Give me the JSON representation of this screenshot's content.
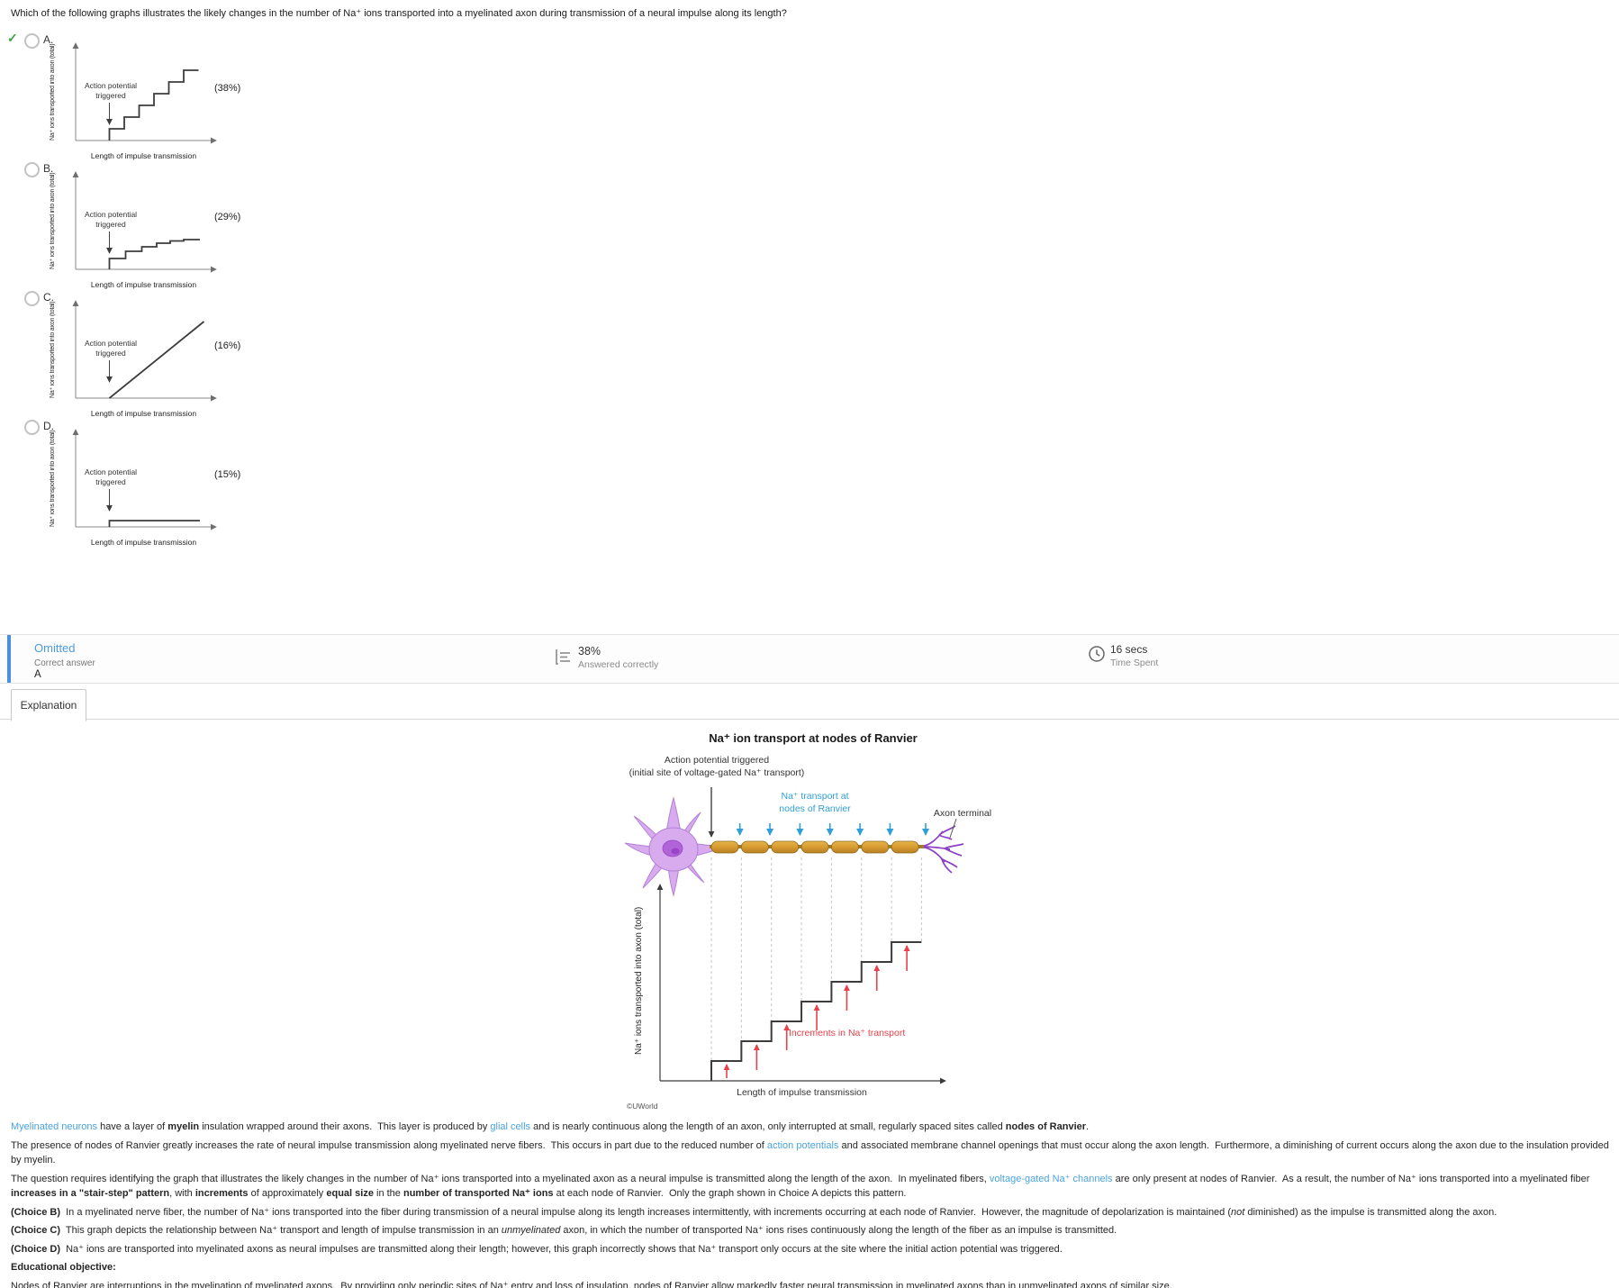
{
  "question": "Which of the following graphs illustrates the likely changes in the number of Na⁺ ions transported into a myelinated axon during transmission of a neural impulse along its length?",
  "icons": {
    "correct_check": "✓",
    "answered_stat": "bar-list-icon",
    "time": "clock-icon"
  },
  "choices": [
    {
      "letter": "A.",
      "percent": "(38%)",
      "annotation": "Action potential\ntriggered",
      "ylabel": "Na⁺ ions transported into axon (total)",
      "xlabel": "Length of impulse transmission",
      "correct": true
    },
    {
      "letter": "B.",
      "percent": "(29%)",
      "annotation": "Action potential\ntriggered",
      "ylabel": "Na⁺ ions transported into axon (total)",
      "xlabel": "Length of impulse transmission",
      "correct": false
    },
    {
      "letter": "C.",
      "percent": "(16%)",
      "annotation": "Action potential\ntriggered",
      "ylabel": "Na⁺ ions transported into axon (total)",
      "xlabel": "Length of impulse transmission",
      "correct": false
    },
    {
      "letter": "D.",
      "percent": "(15%)",
      "annotation": "Action potential\ntriggered",
      "ylabel": "Na⁺ ions transported into axon (total)",
      "xlabel": "Length of impulse transmission",
      "correct": false
    }
  ],
  "result_bar": {
    "status": "Omitted",
    "correct_answer_label": "Correct answer",
    "correct_answer_value": "A",
    "answered_pct": "38%",
    "answered_label": "Answered correctly",
    "time_value": "16 secs",
    "time_label": "Time Spent"
  },
  "tab_label": "Explanation",
  "figure": {
    "title": "Na⁺ ion transport at nodes of Ranvier",
    "trigger_label": "Action potential triggered\n(initial site of voltage-gated Na⁺ transport)",
    "transport_label": "Na⁺ transport at\nnodes of Ranvier",
    "terminal_label": "Axon terminal",
    "increments_label": "Increments in Na⁺ transport",
    "xlabel": "Length of impulse transmission",
    "ylabel": "Na⁺ ions transported into axon (total)",
    "copyright": "©UWorld"
  },
  "chart_data": [
    {
      "id": "choice-A-graph",
      "choice": "A",
      "type": "line",
      "shape": "stair-step with equal increments",
      "xlabel": "Length of impulse transmission",
      "ylabel": "Na⁺ ions transported into axon (total)",
      "annotation": "Action potential triggered",
      "x_range": [
        0,
        1
      ],
      "y_range": [
        0,
        1
      ],
      "points_norm": [
        [
          0.25,
          0
        ],
        [
          0.25,
          0.13
        ],
        [
          0.36,
          0.13
        ],
        [
          0.36,
          0.26
        ],
        [
          0.47,
          0.26
        ],
        [
          0.47,
          0.39
        ],
        [
          0.58,
          0.39
        ],
        [
          0.58,
          0.52
        ],
        [
          0.69,
          0.52
        ],
        [
          0.69,
          0.65
        ],
        [
          0.8,
          0.65
        ],
        [
          0.8,
          0.78
        ],
        [
          0.91,
          0.78
        ]
      ]
    },
    {
      "id": "choice-B-graph",
      "choice": "B",
      "type": "line",
      "shape": "stair-step with diminishing increments",
      "xlabel": "Length of impulse transmission",
      "ylabel": "Na⁺ ions transported into axon (total)",
      "annotation": "Action potential triggered",
      "x_range": [
        0,
        1
      ],
      "y_range": [
        0,
        1
      ],
      "points_norm": [
        [
          0.25,
          0
        ],
        [
          0.25,
          0.12
        ],
        [
          0.37,
          0.12
        ],
        [
          0.37,
          0.2
        ],
        [
          0.49,
          0.2
        ],
        [
          0.49,
          0.25
        ],
        [
          0.6,
          0.25
        ],
        [
          0.6,
          0.29
        ],
        [
          0.7,
          0.29
        ],
        [
          0.7,
          0.315
        ],
        [
          0.8,
          0.315
        ],
        [
          0.8,
          0.33
        ],
        [
          0.92,
          0.33
        ]
      ]
    },
    {
      "id": "choice-C-graph",
      "choice": "C",
      "type": "line",
      "shape": "continuous linear increase",
      "xlabel": "Length of impulse transmission",
      "ylabel": "Na⁺ ions transported into axon (total)",
      "annotation": "Action potential triggered",
      "x_range": [
        0,
        1
      ],
      "y_range": [
        0,
        1
      ],
      "points_norm": [
        [
          0.25,
          0
        ],
        [
          0.95,
          0.85
        ]
      ]
    },
    {
      "id": "choice-D-graph",
      "choice": "D",
      "type": "line",
      "shape": "single initial increment then flat",
      "xlabel": "Length of impulse transmission",
      "ylabel": "Na⁺ ions transported into axon (total)",
      "annotation": "Action potential triggered",
      "x_range": [
        0,
        1
      ],
      "y_range": [
        0,
        1
      ],
      "points_norm": [
        [
          0.25,
          0
        ],
        [
          0.25,
          0.07
        ],
        [
          0.92,
          0.07
        ]
      ]
    },
    {
      "id": "figure-graph",
      "type": "step",
      "n_steps": 7,
      "equal_increments": true,
      "title": "Na⁺ ion transport at nodes of Ranvier",
      "xlabel": "Length of impulse transmission",
      "ylabel": "Na⁺ ions transported into axon (total)",
      "annotation": "Increments in Na⁺ transport",
      "description": "Total Na⁺ ions transported into the axon increases in equal stair-step increments at each of 7 nodes of Ranvier along the length of impulse transmission"
    }
  ],
  "explanation": {
    "paragraphs": [
      [
        {
          "t": "Myelinated neurons",
          "s": "link"
        },
        {
          "t": " have a layer of ",
          "s": ""
        },
        {
          "t": "myelin",
          "s": "b"
        },
        {
          "t": " insulation wrapped around their axons.  This layer is produced by ",
          "s": ""
        },
        {
          "t": "glial cells",
          "s": "link"
        },
        {
          "t": " and is nearly continuous along the length of an axon, only interrupted at small, regularly spaced sites called ",
          "s": ""
        },
        {
          "t": "nodes of Ranvier",
          "s": "b"
        },
        {
          "t": ".",
          "s": ""
        }
      ],
      [
        {
          "t": "The presence of nodes of Ranvier greatly increases the rate of neural impulse transmission along myelinated nerve fibers.  This occurs in part due to the reduced number of ",
          "s": ""
        },
        {
          "t": "action potentials",
          "s": "link"
        },
        {
          "t": " and associated membrane channel openings that must occur along the axon length.  Furthermore, a diminishing of current occurs along the axon due to the insulation provided by myelin.",
          "s": ""
        }
      ],
      [
        {
          "t": "The question requires identifying the graph that illustrates the likely changes in the number of Na⁺ ions transported into a myelinated axon as a neural impulse is transmitted along the length of the axon.  In myelinated fibers, ",
          "s": ""
        },
        {
          "t": "voltage-gated Na⁺ channels",
          "s": "link"
        },
        {
          "t": " are only present at nodes of Ranvier.  As a result, the number of Na⁺ ions transported into a myelinated fiber ",
          "s": ""
        },
        {
          "t": "increases in a \"stair-step\" pattern",
          "s": "b"
        },
        {
          "t": ", with ",
          "s": ""
        },
        {
          "t": "increments",
          "s": "b"
        },
        {
          "t": " of approximately ",
          "s": ""
        },
        {
          "t": "equal size",
          "s": "b"
        },
        {
          "t": " in the ",
          "s": ""
        },
        {
          "t": "number of transported Na⁺ ions",
          "s": "b"
        },
        {
          "t": " at each node of Ranvier.  Only the graph shown in Choice A depicts this pattern.",
          "s": ""
        }
      ],
      [
        {
          "t": "(Choice B)",
          "s": "b"
        },
        {
          "t": "  In a myelinated nerve fiber, the number of Na⁺ ions transported into the fiber during transmission of a neural impulse along its length increases intermittently, with increments occurring at each node of Ranvier.  However, the magnitude of depolarization is maintained (",
          "s": ""
        },
        {
          "t": "not",
          "s": "i"
        },
        {
          "t": " diminished) as the impulse is transmitted along the axon.",
          "s": ""
        }
      ],
      [
        {
          "t": "(Choice C)",
          "s": "b"
        },
        {
          "t": "  This graph depicts the relationship between Na⁺ transport and length of impulse transmission in an ",
          "s": ""
        },
        {
          "t": "unmyelinated",
          "s": "i"
        },
        {
          "t": " axon, in which the number of transported Na⁺ ions rises continuously along the length of the fiber as an impulse is transmitted.",
          "s": ""
        }
      ],
      [
        {
          "t": "(Choice D)",
          "s": "b"
        },
        {
          "t": "  Na⁺ ions are transported into myelinated axons as neural impulses are transmitted along their length; however, this graph incorrectly shows that Na⁺ transport only occurs at the site where the initial action potential was triggered.",
          "s": ""
        }
      ],
      [
        {
          "t": "Educational objective:",
          "s": "b"
        }
      ],
      [
        {
          "t": "Nodes of Ranvier are interruptions in the myelination of myelinated axons.  By providing only periodic sites of Na⁺ entry and loss of insulation, nodes of Ranvier allow markedly faster neural transmission in myelinated axons than in unmyelinated axons of similar size.",
          "s": ""
        }
      ]
    ]
  }
}
